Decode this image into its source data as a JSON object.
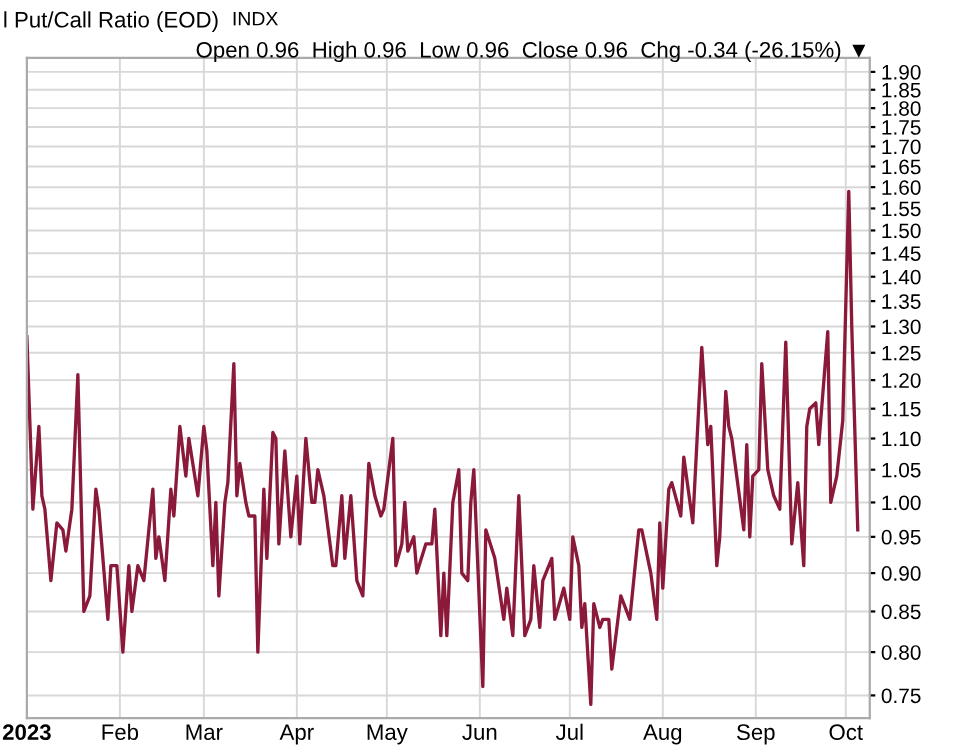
{
  "chart_data": {
    "type": "line",
    "title": "l Put/Call Ratio (EOD)",
    "subtitle": "Open 0.96  High 0.96  Low 0.96  Close 0.96  Chg -0.34 (-26.15%) ▼",
    "annotations": [
      "INDX"
    ],
    "x": [
      "2023-01-01",
      "2023-01-03",
      "2023-01-05",
      "2023-01-06",
      "2023-01-07",
      "2023-01-09",
      "2023-01-11",
      "2023-01-13",
      "2023-01-14",
      "2023-01-16",
      "2023-01-18",
      "2023-01-20",
      "2023-01-22",
      "2023-01-24",
      "2023-01-25",
      "2023-01-28",
      "2023-01-29",
      "2023-01-31",
      "2023-02-02",
      "2023-02-04",
      "2023-02-05",
      "2023-02-07",
      "2023-02-09",
      "2023-02-12",
      "2023-02-13",
      "2023-02-14",
      "2023-02-16",
      "2023-02-18",
      "2023-02-19",
      "2023-02-21",
      "2023-02-23",
      "2023-02-24",
      "2023-02-27",
      "2023-03-01",
      "2023-03-02",
      "2023-03-04",
      "2023-03-05",
      "2023-03-06",
      "2023-03-08",
      "2023-03-09",
      "2023-03-11",
      "2023-03-12",
      "2023-03-13",
      "2023-03-15",
      "2023-03-16",
      "2023-03-18",
      "2023-03-19",
      "2023-03-21",
      "2023-03-22",
      "2023-03-24",
      "2023-03-25",
      "2023-03-26",
      "2023-03-28",
      "2023-03-30",
      "2023-04-01",
      "2023-04-02",
      "2023-04-04",
      "2023-04-06",
      "2023-04-07",
      "2023-04-08",
      "2023-04-10",
      "2023-04-13",
      "2023-04-14",
      "2023-04-16",
      "2023-04-17",
      "2023-04-19",
      "2023-04-21",
      "2023-04-23",
      "2023-04-25",
      "2023-04-27",
      "2023-04-29",
      "2023-04-30",
      "2023-05-03",
      "2023-05-04",
      "2023-05-06",
      "2023-05-07",
      "2023-05-08",
      "2023-05-10",
      "2023-05-11",
      "2023-05-14",
      "2023-05-16",
      "2023-05-17",
      "2023-05-19",
      "2023-05-20",
      "2023-05-21",
      "2023-05-23",
      "2023-05-25",
      "2023-05-26",
      "2023-05-28",
      "2023-05-29",
      "2023-05-30",
      "2023-06-02",
      "2023-06-03",
      "2023-06-06",
      "2023-06-09",
      "2023-06-10",
      "2023-06-12",
      "2023-06-14",
      "2023-06-16",
      "2023-06-18",
      "2023-06-19",
      "2023-06-21",
      "2023-06-22",
      "2023-06-25",
      "2023-06-26",
      "2023-06-29",
      "2023-07-01",
      "2023-07-02",
      "2023-07-04",
      "2023-07-05",
      "2023-07-06",
      "2023-07-08",
      "2023-07-09",
      "2023-07-11",
      "2023-07-12",
      "2023-07-14",
      "2023-07-15",
      "2023-07-18",
      "2023-07-19",
      "2023-07-21",
      "2023-07-24",
      "2023-07-25",
      "2023-07-28",
      "2023-07-30",
      "2023-07-31",
      "2023-08-01",
      "2023-08-03",
      "2023-08-04",
      "2023-08-07",
      "2023-08-08",
      "2023-08-11",
      "2023-08-14",
      "2023-08-16",
      "2023-08-17",
      "2023-08-19",
      "2023-08-20",
      "2023-08-22",
      "2023-08-23",
      "2023-08-24",
      "2023-08-28",
      "2023-08-29",
      "2023-08-30",
      "2023-08-31",
      "2023-09-02",
      "2023-09-03",
      "2023-09-05",
      "2023-09-07",
      "2023-09-09",
      "2023-09-11",
      "2023-09-13",
      "2023-09-15",
      "2023-09-17",
      "2023-09-18",
      "2023-09-19",
      "2023-09-21",
      "2023-09-22",
      "2023-09-25",
      "2023-09-26",
      "2023-09-28",
      "2023-09-30",
      "2023-10-02",
      "2023-10-03",
      "2023-10-05"
    ],
    "series": [
      {
        "color": "#8b1a3a",
        "values": [
          1.28,
          0.99,
          1.12,
          1.01,
          0.99,
          0.89,
          0.97,
          0.96,
          0.93,
          0.99,
          1.21,
          0.85,
          0.87,
          1.02,
          0.99,
          0.84,
          0.91,
          0.91,
          0.8,
          0.91,
          0.85,
          0.91,
          0.89,
          1.02,
          0.92,
          0.95,
          0.89,
          1.02,
          0.98,
          1.12,
          1.04,
          1.1,
          1.01,
          1.12,
          1.08,
          0.91,
          1.0,
          0.87,
          1.0,
          1.03,
          1.23,
          1.01,
          1.06,
          1.0,
          0.98,
          0.98,
          0.8,
          1.02,
          0.92,
          1.11,
          1.1,
          0.94,
          1.08,
          0.95,
          1.04,
          0.94,
          1.1,
          1.0,
          1.0,
          1.05,
          1.01,
          0.91,
          0.91,
          1.01,
          0.92,
          1.01,
          0.89,
          0.87,
          1.06,
          1.01,
          0.98,
          0.99,
          1.1,
          0.91,
          0.94,
          1.0,
          0.93,
          0.95,
          0.9,
          0.94,
          0.94,
          0.99,
          0.82,
          0.9,
          0.82,
          1.0,
          1.05,
          0.9,
          0.89,
          1.0,
          1.05,
          0.76,
          0.96,
          0.92,
          0.84,
          0.88,
          0.82,
          1.01,
          0.82,
          0.84,
          0.91,
          0.83,
          0.89,
          0.92,
          0.84,
          0.88,
          0.84,
          0.95,
          0.91,
          0.83,
          0.86,
          0.74,
          0.86,
          0.83,
          0.84,
          0.84,
          0.78,
          0.87,
          0.86,
          0.84,
          0.96,
          0.96,
          0.9,
          0.84,
          0.97,
          0.88,
          1.02,
          1.03,
          0.98,
          1.07,
          0.97,
          1.26,
          1.09,
          1.12,
          0.91,
          0.95,
          1.18,
          1.12,
          1.1,
          0.96,
          1.09,
          0.95,
          1.04,
          1.05,
          1.23,
          1.05,
          1.01,
          0.99,
          1.27,
          0.94,
          1.03,
          0.91,
          1.12,
          1.15,
          1.16,
          1.09,
          1.29,
          1.0,
          1.04,
          1.13,
          1.59,
          1.3,
          0.96
        ]
      }
    ],
    "log": true,
    "ylim": [
      0.725,
      1.94
    ],
    "yticks": [
      {
        "value": 0.75,
        "label": "0.75"
      },
      {
        "value": 0.8,
        "label": "0.80"
      },
      {
        "value": 0.85,
        "label": "0.85"
      },
      {
        "value": 0.9,
        "label": "0.90"
      },
      {
        "value": 0.95,
        "label": "0.95"
      },
      {
        "value": 1.0,
        "label": "1.00"
      },
      {
        "value": 1.05,
        "label": "1.05"
      },
      {
        "value": 1.1,
        "label": "1.10"
      },
      {
        "value": 1.15,
        "label": "1.15"
      },
      {
        "value": 1.2,
        "label": "1.20"
      },
      {
        "value": 1.25,
        "label": "1.25"
      },
      {
        "value": 1.3,
        "label": "1.30"
      },
      {
        "value": 1.35,
        "label": "1.35"
      },
      {
        "value": 1.4,
        "label": "1.40"
      },
      {
        "value": 1.45,
        "label": "1.45"
      },
      {
        "value": 1.5,
        "label": "1.50"
      },
      {
        "value": 1.55,
        "label": "1.55"
      },
      {
        "value": 1.6,
        "label": "1.60"
      },
      {
        "value": 1.65,
        "label": "1.65"
      },
      {
        "value": 1.7,
        "label": "1.70"
      },
      {
        "value": 1.75,
        "label": "1.75"
      },
      {
        "value": 1.8,
        "label": "1.80"
      },
      {
        "value": 1.85,
        "label": "1.85"
      },
      {
        "value": 1.9,
        "label": "1.90"
      }
    ],
    "xlim": [
      "2023-01-01",
      "2023-10-09"
    ],
    "xticks": [
      {
        "value": "2023-01-01",
        "label": "2023"
      },
      {
        "value": "2023-02-01",
        "label": "Feb"
      },
      {
        "value": "2023-03-01",
        "label": "Mar"
      },
      {
        "value": "2023-04-01",
        "label": "Apr"
      },
      {
        "value": "2023-05-01",
        "label": "May"
      },
      {
        "value": "2023-06-01",
        "label": "Jun"
      },
      {
        "value": "2023-07-01",
        "label": "Jul"
      },
      {
        "value": "2023-08-01",
        "label": "Aug"
      },
      {
        "value": "2023-09-01",
        "label": "Sep"
      },
      {
        "value": "2023-10-01",
        "label": "Oct"
      }
    ],
    "grid": true,
    "legend": false,
    "line_style": "solid",
    "marker": "none"
  }
}
